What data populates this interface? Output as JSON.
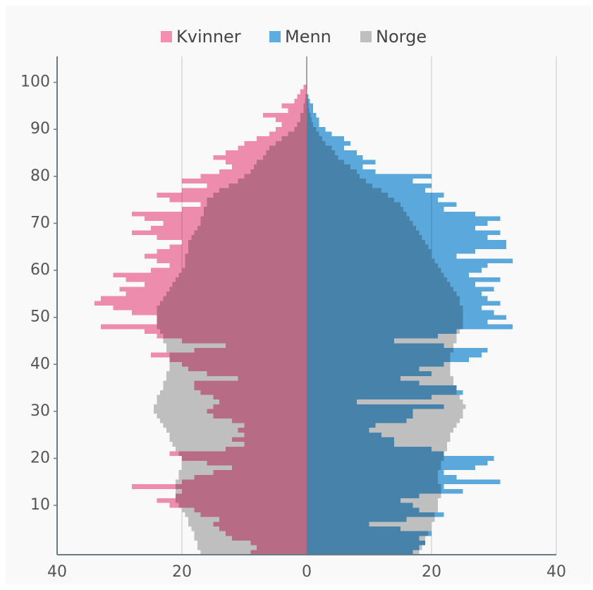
{
  "chart_data": {
    "type": "pyramid",
    "legend_position": "top",
    "grid": true,
    "xlim": [
      -40,
      40
    ],
    "xticks": [
      {
        "value": -40,
        "label": "40"
      },
      {
        "value": -20,
        "label": "20"
      },
      0,
      20,
      40
    ],
    "ylim": [
      -0.5,
      105.5
    ],
    "yticks": [
      10,
      20,
      30,
      40,
      50,
      60,
      70,
      80,
      90,
      100
    ],
    "ages": [
      0,
      1,
      2,
      3,
      4,
      5,
      6,
      7,
      8,
      9,
      10,
      11,
      12,
      13,
      14,
      15,
      16,
      17,
      18,
      19,
      20,
      21,
      22,
      23,
      24,
      25,
      26,
      27,
      28,
      29,
      30,
      31,
      32,
      33,
      34,
      35,
      36,
      37,
      38,
      39,
      40,
      41,
      42,
      43,
      44,
      45,
      46,
      47,
      48,
      49,
      50,
      51,
      52,
      53,
      54,
      55,
      56,
      57,
      58,
      59,
      60,
      61,
      62,
      63,
      64,
      65,
      66,
      67,
      68,
      69,
      70,
      71,
      72,
      73,
      74,
      75,
      76,
      77,
      78,
      79,
      80,
      81,
      82,
      83,
      84,
      85,
      86,
      87,
      88,
      89,
      90,
      91,
      92,
      93,
      94,
      95,
      96,
      97,
      98,
      99,
      100
    ],
    "series": [
      {
        "name": "Kvinner",
        "color": "#f48fb1",
        "side": "left",
        "values": [
          9,
          8,
          9,
          12,
          13,
          14,
          15,
          14,
          17,
          18,
          22,
          24,
          21,
          20,
          28,
          20,
          18,
          15,
          12,
          16,
          20,
          22,
          13,
          10,
          12,
          10,
          11,
          10,
          12,
          15,
          16,
          15,
          14,
          15,
          17,
          18,
          18,
          11,
          16,
          19,
          20,
          22,
          25,
          18,
          13,
          20,
          24,
          26,
          33,
          24,
          24,
          28,
          31,
          34,
          33,
          29,
          30,
          26,
          29,
          31,
          25,
          22,
          24,
          26,
          24,
          22,
          20,
          24,
          28,
          25,
          23,
          26,
          28,
          20,
          17,
          22,
          24,
          20,
          16,
          20,
          17,
          14,
          12,
          13,
          15,
          13,
          11,
          10,
          8,
          6,
          5,
          4,
          5,
          7,
          3,
          4,
          2,
          1.5,
          1,
          0.5,
          0
        ]
      },
      {
        "name": "Menn",
        "color": "#5dade2",
        "side": "right",
        "values": [
          17,
          18,
          19,
          18,
          20,
          15,
          10,
          16,
          22,
          18,
          17,
          15,
          18,
          25,
          22,
          31,
          24,
          22,
          27,
          29,
          30,
          22,
          20,
          14,
          14,
          12,
          10,
          11,
          16,
          17,
          17,
          22,
          8,
          20,
          25,
          24,
          18,
          15,
          20,
          18,
          22,
          26,
          28,
          29,
          22,
          14,
          21,
          24,
          33,
          29,
          32,
          30,
          28,
          31,
          29,
          28,
          30,
          27,
          31,
          26,
          28,
          29,
          33,
          24,
          27,
          32,
          32,
          29,
          31,
          27,
          29,
          31,
          27,
          22,
          24,
          21,
          22,
          19,
          20,
          17,
          20,
          11,
          9,
          11,
          9,
          8,
          6,
          7,
          6,
          4,
          3,
          2,
          2,
          1.5,
          1,
          1,
          0.5,
          0.3,
          0,
          0,
          0
        ]
      },
      {
        "name": "Norge",
        "color": "#bfbfbf",
        "values_kvinner": [
          17,
          17.5,
          17.5,
          18,
          18,
          18.5,
          19,
          19,
          19.5,
          20,
          20.5,
          21,
          21,
          21,
          21,
          21,
          20.5,
          20.5,
          20,
          20,
          20,
          20.5,
          21,
          21.5,
          22,
          22,
          22.5,
          23,
          23.5,
          24,
          24.5,
          24.5,
          24,
          24,
          23.5,
          23,
          23,
          22.5,
          22.5,
          22,
          22,
          22,
          22,
          22.5,
          22.5,
          23,
          23,
          23.5,
          24,
          24,
          24,
          24,
          24,
          23.5,
          23,
          22.5,
          22,
          21.5,
          21,
          20.5,
          20,
          19.5,
          19.5,
          19.5,
          19,
          19,
          19,
          18.5,
          18,
          17.5,
          17,
          17,
          16.5,
          16.5,
          16,
          16,
          15,
          14,
          12.5,
          11,
          10,
          9,
          8.5,
          8,
          7,
          6.5,
          6,
          5,
          4,
          3,
          2,
          1.5,
          1,
          1,
          0.5,
          0.5,
          0.3,
          0.2,
          0.1,
          0.1,
          0
        ],
        "values_menn": [
          18,
          18.5,
          19,
          19,
          19.5,
          20,
          20,
          20.5,
          20.5,
          21,
          21,
          21,
          21.5,
          21.5,
          21.5,
          21,
          21,
          21,
          21.5,
          21.5,
          22,
          22,
          22.5,
          22.5,
          23,
          23,
          23.5,
          24,
          24.5,
          25,
          25,
          25.5,
          25,
          24.5,
          24,
          24,
          23.5,
          23.5,
          23,
          23,
          23,
          23,
          23,
          23.5,
          23.5,
          24,
          24,
          24.5,
          25,
          25,
          25,
          25,
          25,
          24.5,
          24.5,
          24,
          23.5,
          23,
          22.5,
          22,
          21.5,
          21,
          20.5,
          20,
          20,
          19.5,
          19,
          18.5,
          18,
          17.5,
          17,
          16.5,
          16,
          15.5,
          15,
          14,
          13,
          12,
          10.5,
          9.5,
          8.5,
          8,
          7,
          6,
          5,
          4.5,
          4,
          3,
          2.5,
          2,
          1.5,
          1,
          0.8,
          0.6,
          0.4,
          0.3,
          0.2,
          0.1,
          0.1,
          0,
          0
        ]
      }
    ]
  }
}
